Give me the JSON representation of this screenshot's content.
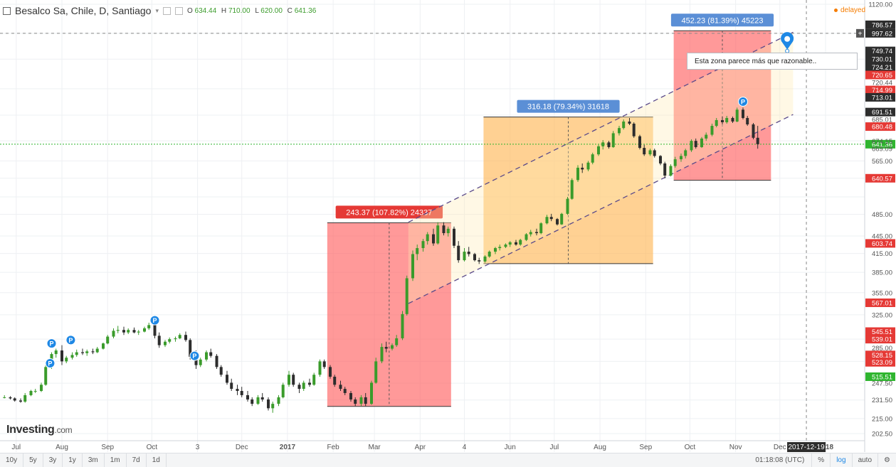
{
  "header": {
    "symbol": "Besalco Sa, Chile, D, Santiago",
    "ohlc": [
      {
        "key": "O",
        "value": "634.44"
      },
      {
        "key": "H",
        "value": "710.00"
      },
      {
        "key": "L",
        "value": "620.00"
      },
      {
        "key": "C",
        "value": "641.36"
      }
    ],
    "status": "delayed"
  },
  "brand": {
    "name": "Investing",
    "domain": ".com"
  },
  "colors": {
    "up": "#3a9b2b",
    "down": "#2d2d2d",
    "accent": "#1e88e5",
    "red_box": "#ff6b6b",
    "orange_box": "#ffb74d",
    "channel": "#5a4a8a"
  },
  "chart_data": {
    "type": "candlestick",
    "scale": "log",
    "grid": true,
    "price_labels": [
      {
        "text": "1120.00",
        "price": 1120,
        "style": "plain"
      },
      {
        "text": "786.57",
        "price": 1032,
        "style": "dark"
      },
      {
        "text": "997.62",
        "price": 997.62,
        "style": "dark"
      },
      {
        "text": "749.74",
        "price": 930,
        "style": "dark"
      },
      {
        "text": "730.01",
        "price": 900,
        "style": "dark"
      },
      {
        "text": "724.21",
        "price": 872,
        "style": "dark"
      },
      {
        "text": "720.65",
        "price": 845,
        "style": "red"
      },
      {
        "text": "720.44",
        "price": 820,
        "style": "plain"
      },
      {
        "text": "714.99",
        "price": 796,
        "style": "red"
      },
      {
        "text": "713.01",
        "price": 773,
        "style": "dark"
      },
      {
        "text": "691.51",
        "price": 729,
        "style": "dark"
      },
      {
        "text": "685.01",
        "price": 708,
        "style": "plain"
      },
      {
        "text": "680.48",
        "price": 688,
        "style": "red"
      },
      {
        "text": "641.36",
        "price": 641.36,
        "style": "green"
      },
      {
        "text": "674.15",
        "price": 649,
        "style": "plain"
      },
      {
        "text": "669.09",
        "price": 630,
        "style": "plain"
      },
      {
        "text": "565.00",
        "price": 600,
        "style": "plain"
      },
      {
        "text": "640.57",
        "price": 560,
        "style": "red"
      },
      {
        "text": "485.00",
        "price": 485,
        "style": "plain"
      },
      {
        "text": "445.00",
        "price": 445,
        "style": "plain"
      },
      {
        "text": "603.74",
        "price": 432,
        "style": "red"
      },
      {
        "text": "415.00",
        "price": 415,
        "style": "plain"
      },
      {
        "text": "385.00",
        "price": 385,
        "style": "plain"
      },
      {
        "text": "355.00",
        "price": 355,
        "style": "plain"
      },
      {
        "text": "567.01",
        "price": 341,
        "style": "red"
      },
      {
        "text": "325.00",
        "price": 325,
        "style": "plain"
      },
      {
        "text": "545.51",
        "price": 304,
        "style": "red"
      },
      {
        "text": "539.01",
        "price": 295,
        "style": "red"
      },
      {
        "text": "285.00",
        "price": 285,
        "style": "plain"
      },
      {
        "text": "528.15",
        "price": 277,
        "style": "red"
      },
      {
        "text": "523.09",
        "price": 269,
        "style": "red"
      },
      {
        "text": "515.51",
        "price": 254,
        "style": "green"
      },
      {
        "text": "247.50",
        "price": 247.5,
        "style": "plain"
      },
      {
        "text": "231.50",
        "price": 231.5,
        "style": "plain"
      },
      {
        "text": "215.00",
        "price": 215,
        "style": "plain"
      },
      {
        "text": "202.50",
        "price": 202.5,
        "style": "plain"
      }
    ],
    "x_ticks": [
      "Jul",
      "Aug",
      "Sep",
      "Oct",
      "3",
      "Dec",
      "2017",
      "Feb",
      "Mar",
      "Apr",
      "4",
      "Jun",
      "Jul",
      "Aug",
      "Sep",
      "Oct",
      "Nov",
      "Dec",
      "2018"
    ],
    "x_tick_dates": [
      "2016-07-01",
      "2016-08-01",
      "2016-09-01",
      "2016-10-01",
      "2016-11-01",
      "2016-12-01",
      "2017-01-01",
      "2017-02-01",
      "2017-03-01",
      "2017-04-01",
      "2017-05-01",
      "2017-06-01",
      "2017-07-01",
      "2017-08-01",
      "2017-09-01",
      "2017-10-01",
      "2017-11-01",
      "2017-12-01",
      "2018-01-01"
    ],
    "crosshair": {
      "date": "2017-12-19",
      "price": 997.62,
      "date_label": "2017-12-19",
      "price_label": "997.62"
    },
    "last_price": 641.36,
    "measures": [
      {
        "label": "243.37 (107.82%) 24337",
        "start": "2017-01-28",
        "end": "2017-04-22",
        "low": 225.7,
        "high": 469.07,
        "color": "red"
      },
      {
        "label": "316.18 (79.34%) 31618",
        "start": "2017-05-14",
        "end": "2017-09-06",
        "low": 398.5,
        "high": 714.68,
        "color": "orange"
      },
      {
        "label": "452.23 (81.39%) 45223",
        "start": "2017-09-20",
        "end": "2017-11-25",
        "low": 555.6,
        "high": 1007.83,
        "color": "red"
      }
    ],
    "channel": {
      "upper": [
        {
          "date": "2017-03-24",
          "price": 470
        },
        {
          "date": "2017-12-10",
          "price": 1002
        }
      ],
      "lower": [
        {
          "date": "2017-03-24",
          "price": 340
        },
        {
          "date": "2017-12-10",
          "price": 722
        }
      ]
    },
    "annotation": {
      "text": "Esta zona parece más que razonable..",
      "date": "2017-12-06",
      "price": 935
    },
    "event_markers": [
      {
        "date": "2016-07-24",
        "price": 268,
        "label": "P"
      },
      {
        "date": "2016-07-25",
        "price": 290,
        "label": "P"
      },
      {
        "date": "2016-08-07",
        "price": 294,
        "label": "P"
      },
      {
        "date": "2016-10-03",
        "price": 318,
        "label": "P"
      },
      {
        "date": "2016-10-30",
        "price": 276,
        "label": "P"
      },
      {
        "date": "2017-11-06",
        "price": 760,
        "label": "P"
      }
    ],
    "candles": [
      [
        "2016-06-23",
        234,
        236,
        233,
        234
      ],
      [
        "2016-06-27",
        234,
        235,
        232,
        233
      ],
      [
        "2016-06-30",
        233,
        234,
        230,
        231
      ],
      [
        "2016-07-04",
        231,
        233,
        229,
        230
      ],
      [
        "2016-07-07",
        230,
        238,
        229,
        236
      ],
      [
        "2016-07-11",
        236,
        241,
        235,
        240
      ],
      [
        "2016-07-14",
        240,
        242,
        238,
        240
      ],
      [
        "2016-07-18",
        240,
        248,
        239,
        246
      ],
      [
        "2016-07-21",
        246,
        266,
        245,
        264
      ],
      [
        "2016-07-25",
        264,
        280,
        262,
        278
      ],
      [
        "2016-07-28",
        278,
        284,
        274,
        282
      ],
      [
        "2016-08-01",
        282,
        288,
        266,
        270
      ],
      [
        "2016-08-04",
        270,
        276,
        268,
        274
      ],
      [
        "2016-08-08",
        274,
        280,
        272,
        277
      ],
      [
        "2016-08-11",
        277,
        283,
        275,
        280
      ],
      [
        "2016-08-15",
        280,
        284,
        277,
        279
      ],
      [
        "2016-08-18",
        279,
        283,
        276,
        281
      ],
      [
        "2016-08-22",
        281,
        284,
        278,
        280
      ],
      [
        "2016-08-25",
        280,
        286,
        279,
        284
      ],
      [
        "2016-08-29",
        284,
        291,
        283,
        290
      ],
      [
        "2016-09-01",
        290,
        300,
        289,
        298
      ],
      [
        "2016-09-05",
        298,
        308,
        296,
        305
      ],
      [
        "2016-09-08",
        305,
        311,
        302,
        306
      ],
      [
        "2016-09-12",
        306,
        310,
        300,
        303
      ],
      [
        "2016-09-15",
        303,
        308,
        301,
        306
      ],
      [
        "2016-09-19",
        306,
        309,
        302,
        303
      ],
      [
        "2016-09-22",
        303,
        306,
        300,
        304
      ],
      [
        "2016-09-26",
        304,
        310,
        303,
        308
      ],
      [
        "2016-09-29",
        308,
        315,
        306,
        312
      ],
      [
        "2016-10-03",
        312,
        316,
        296,
        299
      ],
      [
        "2016-10-06",
        299,
        303,
        285,
        288
      ],
      [
        "2016-10-10",
        288,
        294,
        286,
        292
      ],
      [
        "2016-10-13",
        292,
        297,
        290,
        295
      ],
      [
        "2016-10-17",
        295,
        298,
        292,
        296
      ],
      [
        "2016-10-20",
        296,
        302,
        295,
        300
      ],
      [
        "2016-10-24",
        300,
        304,
        292,
        294
      ],
      [
        "2016-10-27",
        294,
        296,
        272,
        275
      ],
      [
        "2016-10-31",
        275,
        282,
        262,
        266
      ],
      [
        "2016-11-03",
        266,
        274,
        264,
        272
      ],
      [
        "2016-11-07",
        272,
        282,
        270,
        280
      ],
      [
        "2016-11-10",
        280,
        284,
        274,
        276
      ],
      [
        "2016-11-14",
        276,
        278,
        262,
        264
      ],
      [
        "2016-11-17",
        264,
        266,
        254,
        256
      ],
      [
        "2016-11-21",
        256,
        260,
        246,
        248
      ],
      [
        "2016-11-24",
        248,
        252,
        240,
        242
      ],
      [
        "2016-11-28",
        242,
        246,
        236,
        240
      ],
      [
        "2016-12-01",
        240,
        244,
        234,
        236
      ],
      [
        "2016-12-05",
        236,
        240,
        230,
        232
      ],
      [
        "2016-12-08",
        232,
        234,
        226,
        228
      ],
      [
        "2016-12-12",
        228,
        236,
        227,
        234
      ],
      [
        "2016-12-15",
        234,
        238,
        230,
        232
      ],
      [
        "2016-12-19",
        232,
        234,
        222,
        224
      ],
      [
        "2016-12-22",
        224,
        230,
        220,
        228
      ],
      [
        "2016-12-26",
        228,
        236,
        226,
        234
      ],
      [
        "2016-12-29",
        234,
        248,
        233,
        246
      ],
      [
        "2017-01-02",
        246,
        260,
        244,
        256
      ],
      [
        "2017-01-05",
        256,
        258,
        244,
        246
      ],
      [
        "2017-01-09",
        246,
        248,
        238,
        242
      ],
      [
        "2017-01-12",
        242,
        250,
        240,
        248
      ],
      [
        "2017-01-16",
        248,
        252,
        244,
        246
      ],
      [
        "2017-01-19",
        246,
        258,
        245,
        256
      ],
      [
        "2017-01-23",
        256,
        272,
        254,
        270
      ],
      [
        "2017-01-26",
        270,
        272,
        262,
        264
      ],
      [
        "2017-01-30",
        264,
        266,
        252,
        254
      ],
      [
        "2017-02-02",
        254,
        256,
        244,
        246
      ],
      [
        "2017-02-06",
        246,
        250,
        240,
        242
      ],
      [
        "2017-02-09",
        242,
        244,
        236,
        238
      ],
      [
        "2017-02-13",
        238,
        240,
        230,
        232
      ],
      [
        "2017-02-16",
        232,
        234,
        226,
        228
      ],
      [
        "2017-02-20",
        228,
        236,
        226,
        234
      ],
      [
        "2017-02-23",
        234,
        238,
        226,
        228
      ],
      [
        "2017-02-27",
        228,
        250,
        227,
        248
      ],
      [
        "2017-03-02",
        248,
        274,
        247,
        270
      ],
      [
        "2017-03-06",
        270,
        290,
        268,
        286
      ],
      [
        "2017-03-09",
        286,
        292,
        280,
        284
      ],
      [
        "2017-03-13",
        284,
        290,
        282,
        288
      ],
      [
        "2017-03-16",
        288,
        300,
        286,
        296
      ],
      [
        "2017-03-20",
        296,
        330,
        294,
        326
      ],
      [
        "2017-03-23",
        326,
        380,
        324,
        376
      ],
      [
        "2017-03-27",
        376,
        420,
        372,
        414
      ],
      [
        "2017-03-30",
        414,
        430,
        404,
        424
      ],
      [
        "2017-04-03",
        424,
        440,
        418,
        436
      ],
      [
        "2017-04-06",
        436,
        452,
        430,
        448
      ],
      [
        "2017-04-10",
        448,
        458,
        428,
        432
      ],
      [
        "2017-04-13",
        432,
        470,
        430,
        464
      ],
      [
        "2017-04-17",
        464,
        470,
        446,
        450
      ],
      [
        "2017-04-20",
        450,
        462,
        444,
        458
      ],
      [
        "2017-04-24",
        458,
        462,
        424,
        428
      ],
      [
        "2017-04-27",
        428,
        436,
        400,
        404
      ],
      [
        "2017-05-01",
        404,
        424,
        402,
        418
      ],
      [
        "2017-05-04",
        418,
        426,
        410,
        414
      ],
      [
        "2017-05-08",
        414,
        416,
        402,
        404
      ],
      [
        "2017-05-11",
        404,
        408,
        398,
        402
      ],
      [
        "2017-05-15",
        402,
        412,
        400,
        410
      ],
      [
        "2017-05-18",
        410,
        420,
        408,
        418
      ],
      [
        "2017-05-22",
        418,
        426,
        414,
        424
      ],
      [
        "2017-05-25",
        424,
        430,
        420,
        426
      ],
      [
        "2017-05-29",
        426,
        432,
        424,
        430
      ],
      [
        "2017-06-01",
        430,
        436,
        426,
        434
      ],
      [
        "2017-06-05",
        434,
        438,
        428,
        430
      ],
      [
        "2017-06-08",
        430,
        440,
        428,
        438
      ],
      [
        "2017-06-12",
        438,
        450,
        436,
        448
      ],
      [
        "2017-06-15",
        448,
        456,
        444,
        452
      ],
      [
        "2017-06-19",
        452,
        458,
        446,
        450
      ],
      [
        "2017-06-22",
        450,
        470,
        448,
        468
      ],
      [
        "2017-06-26",
        468,
        484,
        466,
        480
      ],
      [
        "2017-06-29",
        480,
        486,
        472,
        476
      ],
      [
        "2017-07-03",
        476,
        478,
        464,
        466
      ],
      [
        "2017-07-06",
        466,
        488,
        465,
        486
      ],
      [
        "2017-07-10",
        486,
        520,
        484,
        516
      ],
      [
        "2017-07-13",
        516,
        560,
        514,
        556
      ],
      [
        "2017-07-17",
        556,
        590,
        552,
        584
      ],
      [
        "2017-07-20",
        584,
        594,
        572,
        580
      ],
      [
        "2017-07-24",
        580,
        600,
        576,
        596
      ],
      [
        "2017-07-27",
        596,
        620,
        592,
        616
      ],
      [
        "2017-07-31",
        616,
        640,
        612,
        636
      ],
      [
        "2017-08-03",
        636,
        652,
        628,
        646
      ],
      [
        "2017-08-07",
        646,
        650,
        630,
        634
      ],
      [
        "2017-08-10",
        634,
        676,
        632,
        670
      ],
      [
        "2017-08-14",
        670,
        690,
        664,
        684
      ],
      [
        "2017-08-17",
        684,
        708,
        680,
        702
      ],
      [
        "2017-08-21",
        702,
        712,
        692,
        696
      ],
      [
        "2017-08-24",
        696,
        700,
        658,
        662
      ],
      [
        "2017-08-28",
        662,
        666,
        628,
        632
      ],
      [
        "2017-08-31",
        632,
        640,
        612,
        616
      ],
      [
        "2017-09-04",
        616,
        630,
        612,
        626
      ],
      [
        "2017-09-07",
        626,
        630,
        608,
        612
      ],
      [
        "2017-09-11",
        612,
        614,
        590,
        594
      ],
      [
        "2017-09-14",
        594,
        598,
        560,
        566
      ],
      [
        "2017-09-18",
        566,
        592,
        564,
        588
      ],
      [
        "2017-09-21",
        588,
        610,
        584,
        604
      ],
      [
        "2017-09-25",
        604,
        618,
        598,
        612
      ],
      [
        "2017-09-28",
        612,
        630,
        606,
        626
      ],
      [
        "2017-10-02",
        626,
        654,
        622,
        650
      ],
      [
        "2017-10-05",
        650,
        656,
        630,
        634
      ],
      [
        "2017-10-09",
        634,
        660,
        632,
        656
      ],
      [
        "2017-10-12",
        656,
        672,
        650,
        666
      ],
      [
        "2017-10-16",
        666,
        696,
        662,
        690
      ],
      [
        "2017-10-19",
        690,
        712,
        686,
        706
      ],
      [
        "2017-10-23",
        706,
        716,
        694,
        700
      ],
      [
        "2017-10-26",
        700,
        718,
        696,
        712
      ],
      [
        "2017-10-30",
        712,
        716,
        698,
        702
      ],
      [
        "2017-11-02",
        702,
        742,
        700,
        736
      ],
      [
        "2017-11-06",
        736,
        742,
        708,
        712
      ],
      [
        "2017-11-09",
        712,
        718,
        690,
        694
      ],
      [
        "2017-11-13",
        694,
        698,
        654,
        658
      ],
      [
        "2017-11-16",
        658,
        690,
        630,
        641.36
      ]
    ]
  },
  "toolbar": {
    "timeframes": [
      "10y",
      "5y",
      "3y",
      "1y",
      "3m",
      "1m",
      "7d",
      "1d"
    ],
    "clock": "01:18:08 (UTC)",
    "options": [
      "%",
      "log",
      "auto"
    ],
    "active_option": "log"
  }
}
